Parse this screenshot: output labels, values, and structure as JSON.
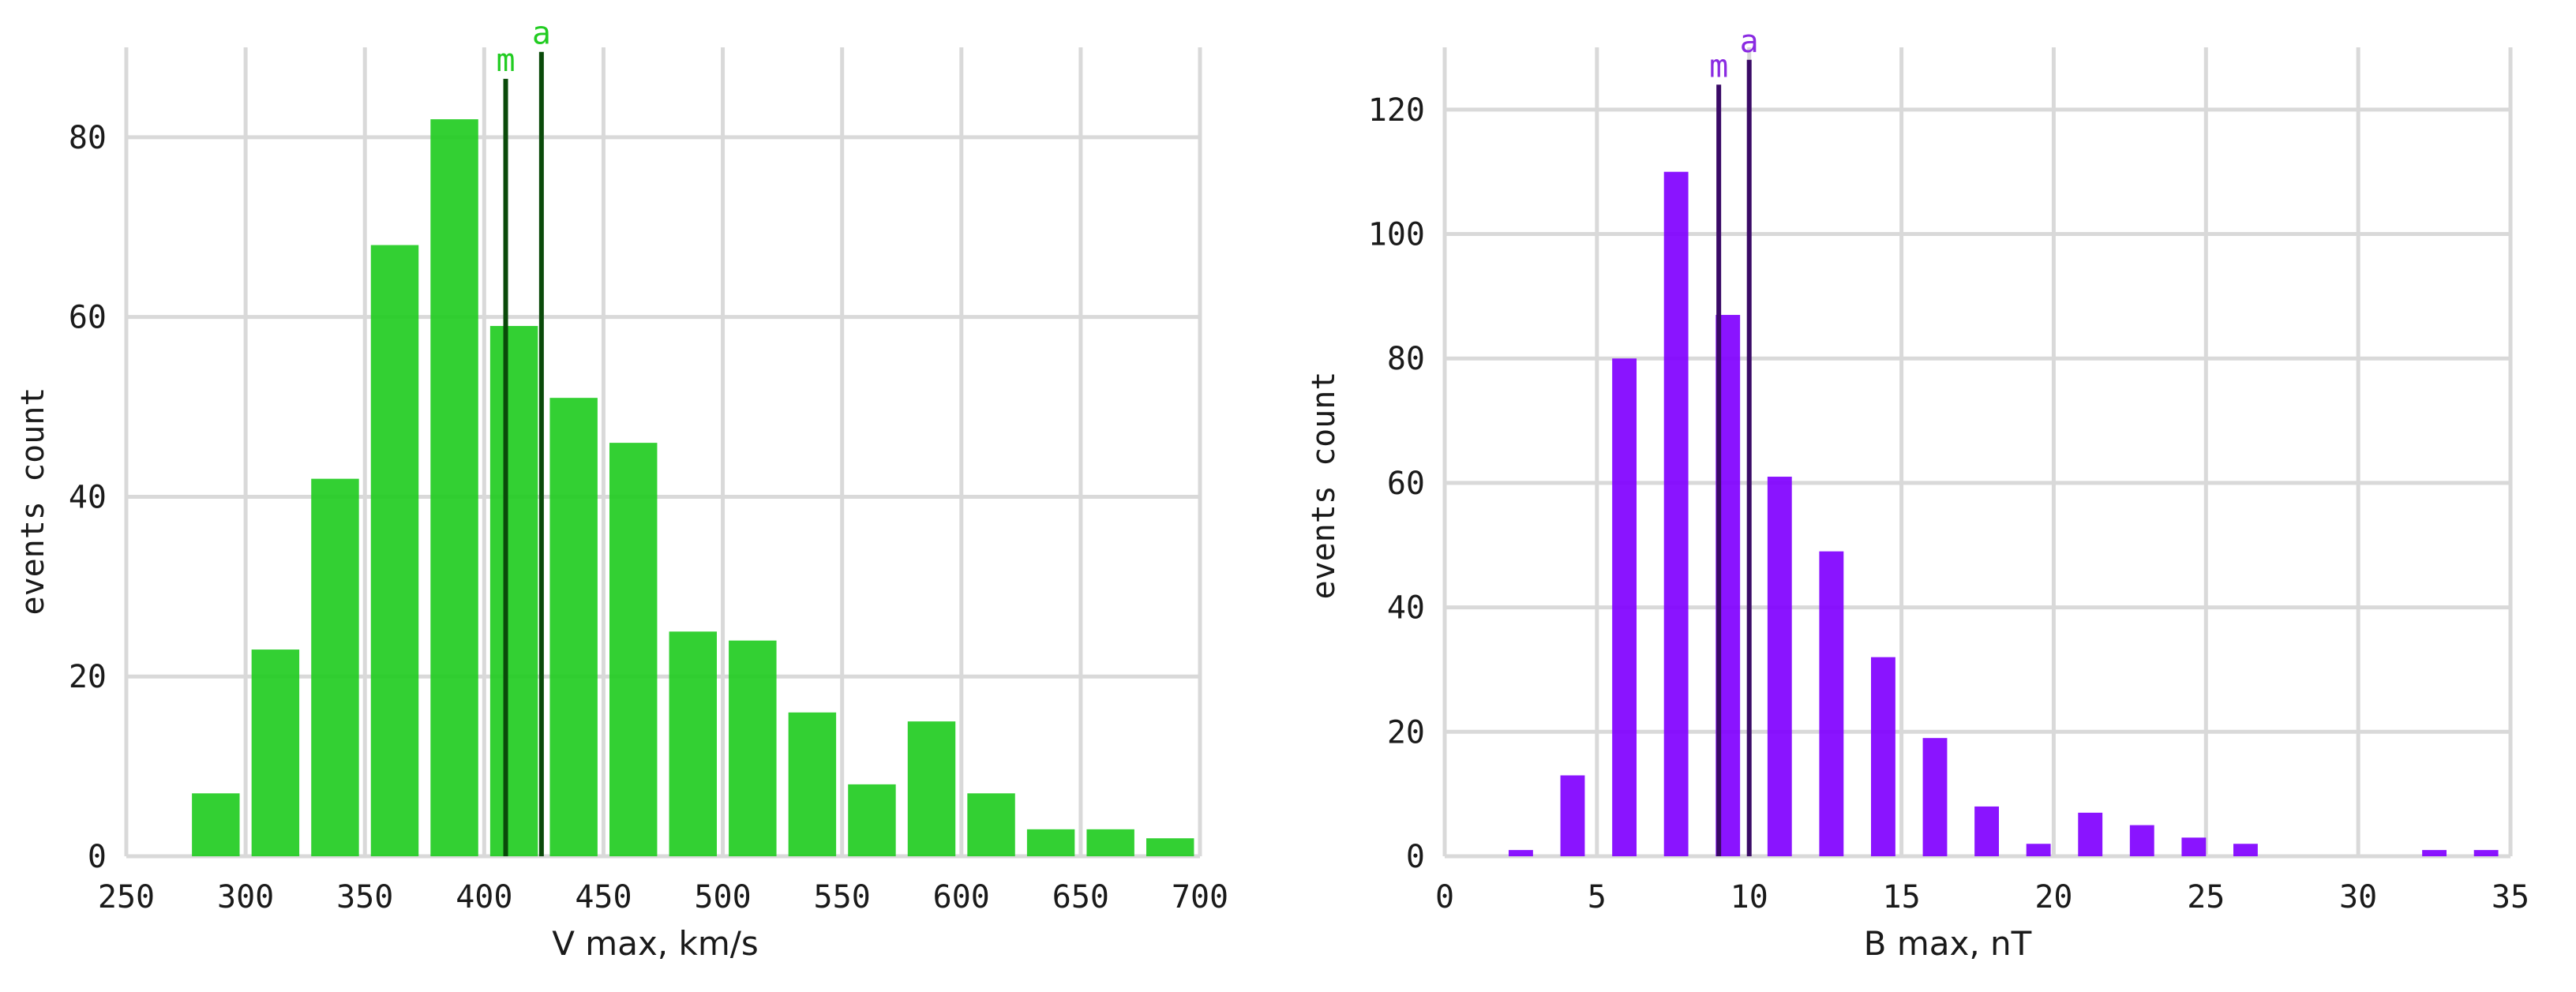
{
  "chart_data": [
    {
      "type": "bar",
      "xlabel": "V max, km/s",
      "ylabel": "events count",
      "xlim": [
        250,
        700
      ],
      "ylim": [
        0,
        90
      ],
      "x_ticks": [
        250,
        300,
        350,
        400,
        450,
        500,
        550,
        600,
        650,
        700
      ],
      "y_ticks": [
        0,
        20,
        40,
        60,
        80
      ],
      "bin_width": 25,
      "bars": [
        {
          "x": 287.5,
          "value": 7
        },
        {
          "x": 312.5,
          "value": 23
        },
        {
          "x": 337.5,
          "value": 42
        },
        {
          "x": 362.5,
          "value": 68
        },
        {
          "x": 387.5,
          "value": 82
        },
        {
          "x": 412.5,
          "value": 59
        },
        {
          "x": 437.5,
          "value": 51
        },
        {
          "x": 462.5,
          "value": 46
        },
        {
          "x": 487.5,
          "value": 25
        },
        {
          "x": 512.5,
          "value": 24
        },
        {
          "x": 537.5,
          "value": 16
        },
        {
          "x": 562.5,
          "value": 8
        },
        {
          "x": 587.5,
          "value": 15
        },
        {
          "x": 612.5,
          "value": 7
        },
        {
          "x": 637.5,
          "value": 3
        },
        {
          "x": 662.5,
          "value": 3
        },
        {
          "x": 687.5,
          "value": 2
        }
      ],
      "markers": [
        {
          "label": "m",
          "x": 409,
          "top": 86.5
        },
        {
          "label": "a",
          "x": 424,
          "top": 89.5
        }
      ],
      "grid": true,
      "bar_color": "#22cc22",
      "marker_color": "#0a4a0a",
      "marker_label_color": "#22cc22"
    },
    {
      "type": "bar",
      "xlabel": "B max, nT",
      "ylabel": "events count",
      "xlim": [
        0,
        35
      ],
      "ylim": [
        0,
        130
      ],
      "x_ticks": [
        0,
        5,
        10,
        15,
        20,
        25,
        30,
        35
      ],
      "y_ticks": [
        0,
        20,
        40,
        60,
        80,
        100,
        120
      ],
      "bin_width": 0.8,
      "bars": [
        {
          "x": 2.5,
          "value": 1
        },
        {
          "x": 4.2,
          "value": 13
        },
        {
          "x": 5.9,
          "value": 80
        },
        {
          "x": 7.6,
          "value": 110
        },
        {
          "x": 9.3,
          "value": 87
        },
        {
          "x": 11.0,
          "value": 61
        },
        {
          "x": 12.7,
          "value": 49
        },
        {
          "x": 14.4,
          "value": 32
        },
        {
          "x": 16.1,
          "value": 19
        },
        {
          "x": 17.8,
          "value": 8
        },
        {
          "x": 19.5,
          "value": 2
        },
        {
          "x": 21.2,
          "value": 7
        },
        {
          "x": 22.9,
          "value": 5
        },
        {
          "x": 24.6,
          "value": 3
        },
        {
          "x": 26.3,
          "value": 2
        },
        {
          "x": 32.5,
          "value": 1
        },
        {
          "x": 34.2,
          "value": 1
        }
      ],
      "markers": [
        {
          "label": "m",
          "x": 9.0,
          "top": 124
        },
        {
          "label": "a",
          "x": 10.0,
          "top": 128
        }
      ],
      "grid": true,
      "bar_color": "#8000ff",
      "marker_color": "#3a0a66",
      "marker_label_color": "#8a2be2"
    }
  ]
}
